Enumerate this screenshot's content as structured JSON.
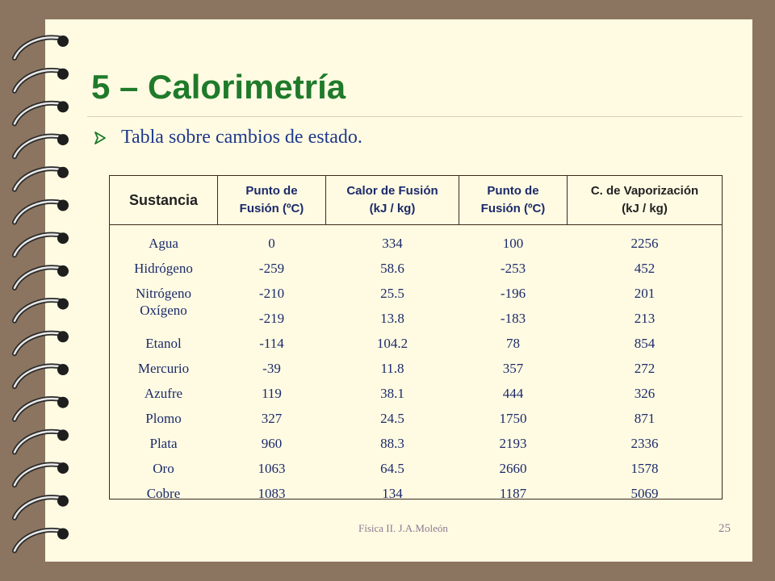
{
  "slide": {
    "title": "5 – Calorimetría",
    "bullet": "Tabla sobre cambios de estado.",
    "footer": "Física II. J.A.Moleón",
    "page_number": "25"
  },
  "table": {
    "headers": [
      {
        "line1": "Sustancia",
        "line2": ""
      },
      {
        "line1": "Punto de",
        "line2": "Fusión (ºC)"
      },
      {
        "line1": "Calor de Fusión",
        "line2": "(kJ / kg)"
      },
      {
        "line1": "Punto de",
        "line2": "Fusión (ºC)"
      },
      {
        "line1": "C. de Vaporización",
        "line2": "(kJ / kg)"
      }
    ],
    "columns": {
      "sustancia": [
        "Agua",
        "Hidrógeno",
        "Nitrógeno",
        "Oxígeno",
        "Etanol",
        "Mercurio",
        "Azufre",
        "Plomo",
        "Plata",
        "Oro",
        "Cobre"
      ],
      "punto_fusion": [
        "0",
        "-259",
        "-210",
        "-219",
        "-114",
        "-39",
        "119",
        "327",
        "960",
        "1063",
        "1083"
      ],
      "calor_fusion": [
        "334",
        "58.6",
        "25.5",
        "13.8",
        "104.2",
        "11.8",
        "38.1",
        "24.5",
        "88.3",
        "64.5",
        "134"
      ],
      "punto_fusion_2": [
        "100",
        "-253",
        "-196",
        "-183",
        "78",
        "357",
        "444",
        "1750",
        "2193",
        "2660",
        "1187"
      ],
      "calor_vaporizacion": [
        "2256",
        "452",
        "201",
        "213",
        "854",
        "272",
        "326",
        "871",
        "2336",
        "1578",
        "5069"
      ]
    }
  }
}
